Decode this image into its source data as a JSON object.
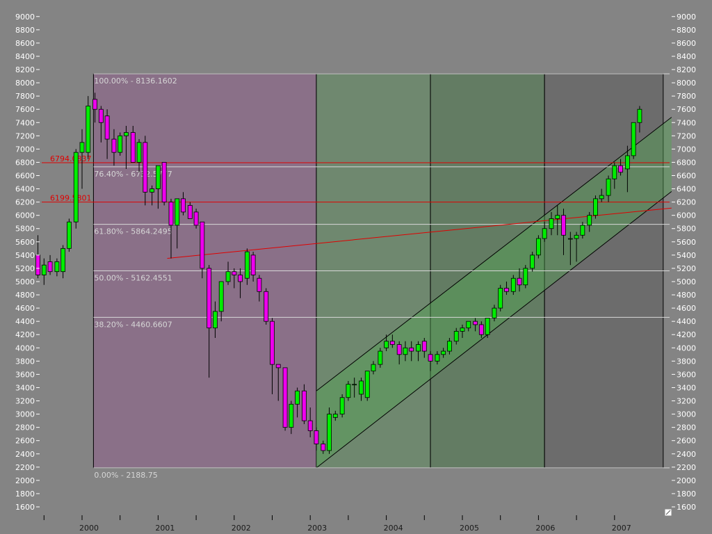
{
  "chart_data": {
    "type": "candlestick",
    "title": "",
    "ylim": [
      1500,
      9100
    ],
    "y_ticks": [
      1600,
      1800,
      2000,
      2200,
      2400,
      2600,
      2800,
      3000,
      3200,
      3400,
      3600,
      3800,
      4000,
      4200,
      4400,
      4600,
      4800,
      5000,
      5200,
      5400,
      5600,
      5800,
      6000,
      6200,
      6400,
      6600,
      6800,
      7000,
      7200,
      7400,
      7600,
      7800,
      8000,
      8200,
      8400,
      8600,
      8800,
      9000
    ],
    "x_labels": [
      {
        "label": "2000",
        "t": 2000.0
      },
      {
        "label": "2001",
        "t": 2001.0
      },
      {
        "label": "2002",
        "t": 2002.0
      },
      {
        "label": "2003",
        "t": 2003.0
      },
      {
        "label": "2004",
        "t": 2004.0
      },
      {
        "label": "2005",
        "t": 2005.0
      },
      {
        "label": "2006",
        "t": 2006.0
      },
      {
        "label": "2007",
        "t": 2007.0
      }
    ],
    "minor_ticks": [
      1999.5,
      2000.5,
      2001.5,
      2002.5,
      2003.5,
      2004.5,
      2005.5,
      2006.5
    ],
    "candles": [
      {
        "t": 1999.42,
        "o": 5400,
        "h": 5700,
        "l": 5050,
        "c": 5100
      },
      {
        "t": 1999.5,
        "o": 5100,
        "h": 5350,
        "l": 4950,
        "c": 5250
      },
      {
        "t": 1999.58,
        "o": 5300,
        "h": 5400,
        "l": 5100,
        "c": 5150
      },
      {
        "t": 1999.67,
        "o": 5150,
        "h": 5350,
        "l": 5080,
        "c": 5300
      },
      {
        "t": 1999.75,
        "o": 5150,
        "h": 5550,
        "l": 5050,
        "c": 5500
      },
      {
        "t": 1999.83,
        "o": 5500,
        "h": 5950,
        "l": 5450,
        "c": 5900
      },
      {
        "t": 1999.92,
        "o": 5900,
        "h": 7000,
        "l": 5800,
        "c": 6950
      },
      {
        "t": 2000.0,
        "o": 6950,
        "h": 7300,
        "l": 6400,
        "c": 7100
      },
      {
        "t": 2000.08,
        "o": 6950,
        "h": 7800,
        "l": 6850,
        "c": 7650
      },
      {
        "t": 2000.17,
        "o": 7750,
        "h": 7850,
        "l": 7400,
        "c": 7600
      },
      {
        "t": 2000.25,
        "o": 7600,
        "h": 7650,
        "l": 7100,
        "c": 7400
      },
      {
        "t": 2000.33,
        "o": 7500,
        "h": 7600,
        "l": 6850,
        "c": 7150
      },
      {
        "t": 2000.42,
        "o": 7150,
        "h": 7300,
        "l": 6750,
        "c": 6950
      },
      {
        "t": 2000.5,
        "o": 6950,
        "h": 7250,
        "l": 6900,
        "c": 7200
      },
      {
        "t": 2000.58,
        "o": 7200,
        "h": 7350,
        "l": 6700,
        "c": 7250
      },
      {
        "t": 2000.67,
        "o": 7250,
        "h": 7350,
        "l": 6850,
        "c": 6800
      },
      {
        "t": 2000.75,
        "o": 6800,
        "h": 7150,
        "l": 6650,
        "c": 7100
      },
      {
        "t": 2000.83,
        "o": 7100,
        "h": 7200,
        "l": 6150,
        "c": 6350
      },
      {
        "t": 2000.92,
        "o": 6350,
        "h": 6450,
        "l": 6150,
        "c": 6400
      },
      {
        "t": 2001.0,
        "o": 6400,
        "h": 6750,
        "l": 6100,
        "c": 6750
      },
      {
        "t": 2001.08,
        "o": 6800,
        "h": 6800,
        "l": 6150,
        "c": 6200
      },
      {
        "t": 2001.17,
        "o": 6200,
        "h": 6250,
        "l": 5350,
        "c": 5850
      },
      {
        "t": 2001.25,
        "o": 5850,
        "h": 6250,
        "l": 5500,
        "c": 6250
      },
      {
        "t": 2001.33,
        "o": 6250,
        "h": 6350,
        "l": 6000,
        "c": 6050
      },
      {
        "t": 2001.42,
        "o": 6150,
        "h": 6200,
        "l": 5950,
        "c": 5950
      },
      {
        "t": 2001.5,
        "o": 6050,
        "h": 6100,
        "l": 5800,
        "c": 5850
      },
      {
        "t": 2001.58,
        "o": 5900,
        "h": 5900,
        "l": 5050,
        "c": 5200
      },
      {
        "t": 2001.67,
        "o": 5200,
        "h": 5250,
        "l": 3550,
        "c": 4300
      },
      {
        "t": 2001.75,
        "o": 4300,
        "h": 4700,
        "l": 4150,
        "c": 4550
      },
      {
        "t": 2001.83,
        "o": 4550,
        "h": 5000,
        "l": 4400,
        "c": 5000
      },
      {
        "t": 2001.92,
        "o": 5000,
        "h": 5300,
        "l": 4950,
        "c": 5150
      },
      {
        "t": 2002.0,
        "o": 5150,
        "h": 5200,
        "l": 4900,
        "c": 5100
      },
      {
        "t": 2002.08,
        "o": 5100,
        "h": 5200,
        "l": 4750,
        "c": 5000
      },
      {
        "t": 2002.17,
        "o": 5050,
        "h": 5500,
        "l": 4950,
        "c": 5450
      },
      {
        "t": 2002.25,
        "o": 5400,
        "h": 5450,
        "l": 5000,
        "c": 5100
      },
      {
        "t": 2002.33,
        "o": 5050,
        "h": 5100,
        "l": 4700,
        "c": 4850
      },
      {
        "t": 2002.42,
        "o": 4850,
        "h": 4900,
        "l": 4350,
        "c": 4400
      },
      {
        "t": 2002.5,
        "o": 4400,
        "h": 4450,
        "l": 3300,
        "c": 3750
      },
      {
        "t": 2002.58,
        "o": 3750,
        "h": 3750,
        "l": 3200,
        "c": 3700
      },
      {
        "t": 2002.67,
        "o": 3700,
        "h": 3700,
        "l": 2750,
        "c": 2800
      },
      {
        "t": 2002.75,
        "o": 2800,
        "h": 3200,
        "l": 2700,
        "c": 3150
      },
      {
        "t": 2002.83,
        "o": 3150,
        "h": 3400,
        "l": 2950,
        "c": 3350
      },
      {
        "t": 2002.92,
        "o": 3350,
        "h": 3450,
        "l": 2850,
        "c": 2900
      },
      {
        "t": 2003.0,
        "o": 2900,
        "h": 3100,
        "l": 2650,
        "c": 2750
      },
      {
        "t": 2003.08,
        "o": 2750,
        "h": 2800,
        "l": 2450,
        "c": 2550
      },
      {
        "t": 2003.17,
        "o": 2550,
        "h": 2600,
        "l": 2400,
        "c": 2450
      },
      {
        "t": 2003.25,
        "o": 2450,
        "h": 3100,
        "l": 2400,
        "c": 3000
      },
      {
        "t": 2003.33,
        "o": 2950,
        "h": 3050,
        "l": 2900,
        "c": 3000
      },
      {
        "t": 2003.42,
        "o": 3000,
        "h": 3300,
        "l": 2950,
        "c": 3250
      },
      {
        "t": 2003.5,
        "o": 3250,
        "h": 3500,
        "l": 3200,
        "c": 3450
      },
      {
        "t": 2003.58,
        "o": 3450,
        "h": 3550,
        "l": 3250,
        "c": 3450
      },
      {
        "t": 2003.67,
        "o": 3300,
        "h": 3550,
        "l": 3200,
        "c": 3500
      },
      {
        "t": 2003.75,
        "o": 3250,
        "h": 3650,
        "l": 3200,
        "c": 3650
      },
      {
        "t": 2003.83,
        "o": 3650,
        "h": 3800,
        "l": 3600,
        "c": 3750
      },
      {
        "t": 2003.92,
        "o": 3750,
        "h": 4000,
        "l": 3700,
        "c": 3950
      },
      {
        "t": 2004.0,
        "o": 4000,
        "h": 4200,
        "l": 3950,
        "c": 4100
      },
      {
        "t": 2004.08,
        "o": 4100,
        "h": 4200,
        "l": 4000,
        "c": 4050
      },
      {
        "t": 2004.17,
        "o": 4050,
        "h": 4100,
        "l": 3750,
        "c": 3900
      },
      {
        "t": 2004.25,
        "o": 3900,
        "h": 4100,
        "l": 3800,
        "c": 4000
      },
      {
        "t": 2004.33,
        "o": 4000,
        "h": 4100,
        "l": 3800,
        "c": 3950
      },
      {
        "t": 2004.42,
        "o": 3950,
        "h": 4100,
        "l": 3800,
        "c": 4050
      },
      {
        "t": 2004.5,
        "o": 4100,
        "h": 4150,
        "l": 3850,
        "c": 3950
      },
      {
        "t": 2004.58,
        "o": 3900,
        "h": 3950,
        "l": 3650,
        "c": 3800
      },
      {
        "t": 2004.67,
        "o": 3800,
        "h": 3950,
        "l": 3750,
        "c": 3900
      },
      {
        "t": 2004.75,
        "o": 3900,
        "h": 4000,
        "l": 3850,
        "c": 3950
      },
      {
        "t": 2004.83,
        "o": 3950,
        "h": 4150,
        "l": 3900,
        "c": 4100
      },
      {
        "t": 2004.92,
        "o": 4100,
        "h": 4300,
        "l": 4050,
        "c": 4250
      },
      {
        "t": 2005.0,
        "o": 4250,
        "h": 4350,
        "l": 4150,
        "c": 4300
      },
      {
        "t": 2005.08,
        "o": 4300,
        "h": 4400,
        "l": 4250,
        "c": 4400
      },
      {
        "t": 2005.17,
        "o": 4400,
        "h": 4450,
        "l": 4250,
        "c": 4350
      },
      {
        "t": 2005.25,
        "o": 4350,
        "h": 4400,
        "l": 4150,
        "c": 4200
      },
      {
        "t": 2005.33,
        "o": 4200,
        "h": 4450,
        "l": 4150,
        "c": 4450
      },
      {
        "t": 2005.42,
        "o": 4450,
        "h": 4650,
        "l": 4400,
        "c": 4600
      },
      {
        "t": 2005.5,
        "o": 4600,
        "h": 4950,
        "l": 4550,
        "c": 4900
      },
      {
        "t": 2005.58,
        "o": 4900,
        "h": 5000,
        "l": 4800,
        "c": 4850
      },
      {
        "t": 2005.67,
        "o": 4850,
        "h": 5100,
        "l": 4800,
        "c": 5050
      },
      {
        "t": 2005.75,
        "o": 5050,
        "h": 5200,
        "l": 4850,
        "c": 4950
      },
      {
        "t": 2005.83,
        "o": 4950,
        "h": 5250,
        "l": 4900,
        "c": 5200
      },
      {
        "t": 2005.92,
        "o": 5200,
        "h": 5450,
        "l": 5150,
        "c": 5400
      },
      {
        "t": 2006.0,
        "o": 5400,
        "h": 5700,
        "l": 5350,
        "c": 5650
      },
      {
        "t": 2006.08,
        "o": 5650,
        "h": 5900,
        "l": 5600,
        "c": 5800
      },
      {
        "t": 2006.17,
        "o": 5800,
        "h": 6050,
        "l": 5700,
        "c": 5950
      },
      {
        "t": 2006.25,
        "o": 5950,
        "h": 6150,
        "l": 5700,
        "c": 6000
      },
      {
        "t": 2006.33,
        "o": 6000,
        "h": 6100,
        "l": 5400,
        "c": 5700
      },
      {
        "t": 2006.42,
        "o": 5650,
        "h": 5750,
        "l": 5250,
        "c": 5650
      },
      {
        "t": 2006.5,
        "o": 5650,
        "h": 5750,
        "l": 5300,
        "c": 5700
      },
      {
        "t": 2006.58,
        "o": 5700,
        "h": 5900,
        "l": 5650,
        "c": 5850
      },
      {
        "t": 2006.67,
        "o": 5850,
        "h": 6050,
        "l": 5750,
        "c": 6000
      },
      {
        "t": 2006.75,
        "o": 6000,
        "h": 6300,
        "l": 5950,
        "c": 6250
      },
      {
        "t": 2006.83,
        "o": 6250,
        "h": 6400,
        "l": 6200,
        "c": 6300
      },
      {
        "t": 2006.92,
        "o": 6300,
        "h": 6600,
        "l": 6200,
        "c": 6550
      },
      {
        "t": 2007.0,
        "o": 6550,
        "h": 6800,
        "l": 6400,
        "c": 6750
      },
      {
        "t": 2007.08,
        "o": 6750,
        "h": 6850,
        "l": 6600,
        "c": 6650
      },
      {
        "t": 2007.17,
        "o": 6700,
        "h": 7050,
        "l": 6350,
        "c": 6900
      },
      {
        "t": 2007.25,
        "o": 6900,
        "h": 7400,
        "l": 6850,
        "c": 7400
      },
      {
        "t": 2007.33,
        "o": 7400,
        "h": 7650,
        "l": 7250,
        "c": 7600
      }
    ],
    "fib_levels": [
      {
        "label": "100.00% - 8136.1602",
        "value": 8136.16
      },
      {
        "label": "76.40% - 6732.5777",
        "value": 6732.58
      },
      {
        "label": "61.80% - 5864.2495",
        "value": 5864.25
      },
      {
        "label": "50.00% - 5162.4551",
        "value": 5162.46
      },
      {
        "label": "38.20% - 4460.6607",
        "value": 4460.66
      },
      {
        "label": "0.00% - 2188.75",
        "value": 2188.75
      }
    ],
    "fib_range": {
      "t0": 2000.15,
      "t1": 2007.64
    },
    "horizontal_lines": [
      {
        "label": "6794.0837",
        "value": 6794.08
      },
      {
        "label": "6199.5801",
        "value": 6199.58
      }
    ],
    "trendline": {
      "t0": 2001.12,
      "v0": 5350,
      "t1": 2007.75,
      "v1": 6110
    },
    "channel": {
      "upper": {
        "t0": 2003.08,
        "v0": 3350,
        "t1": 2007.75,
        "v1": 7480
      },
      "lower": {
        "t0": 2003.08,
        "v0": 2188.75,
        "t1": 2007.75,
        "v1": 6360
      }
    },
    "time_zones": [
      {
        "t0": 2000.15,
        "t1": 2003.08,
        "color": "#8a7088"
      },
      {
        "t0": 2003.08,
        "t1": 2004.58,
        "color": "#6f886f"
      },
      {
        "t0": 2004.58,
        "t1": 2006.08,
        "color": "#637c63"
      },
      {
        "t0": 2006.08,
        "t1": 2007.64,
        "color": "#6c6c6c"
      }
    ],
    "colors": {
      "up": "#00ee00",
      "down": "#ee00ee",
      "background": "#848484",
      "fib_line": "#d8d8d8",
      "red_line": "#e00000",
      "channel_fill": "#55a555"
    }
  }
}
